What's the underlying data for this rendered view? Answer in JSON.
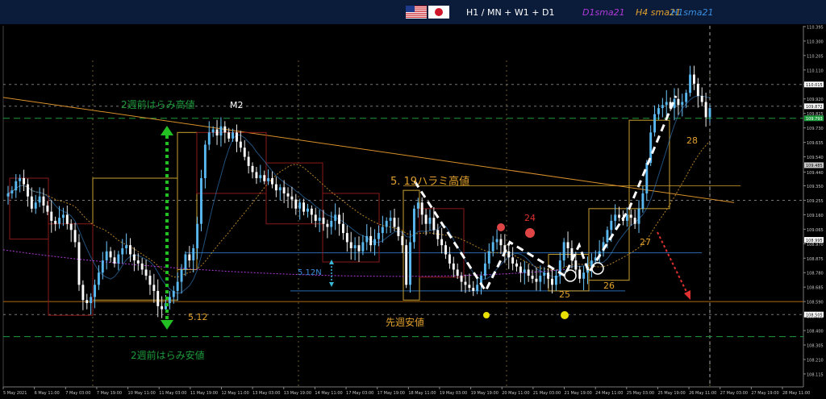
{
  "header": {
    "timeframes": "H1 / MN + W1 + D1",
    "legend": [
      {
        "label": "D1sma21",
        "color": "#b03ad8"
      },
      {
        "label": "H4 sma21",
        "color": "#e2a12c"
      },
      {
        "label": "H1sma21",
        "color": "#3a8fe0"
      }
    ],
    "flags": [
      "us-flag-icon",
      "japan-flag-icon"
    ]
  },
  "chart_data": {
    "type": "candlestick",
    "symbol_pair": "USDJPY",
    "ylim": [
      108.03,
      110.4
    ],
    "y_ticks": [
      110.395,
      110.3,
      110.205,
      110.11,
      110.015,
      109.92,
      109.825,
      109.73,
      109.635,
      109.54,
      109.44,
      109.35,
      109.255,
      109.16,
      109.065,
      108.97,
      108.875,
      108.78,
      108.685,
      108.59,
      108.495,
      108.4,
      108.305,
      108.21,
      108.115
    ],
    "x_ticks": [
      "5 May 2021",
      "6 May 11:00",
      "7 May 03:00",
      "7 May 19:00",
      "10 May 11:00",
      "11 May 03:00",
      "11 May 19:00",
      "12 May 11:00",
      "13 May 03:00",
      "13 May 19:00",
      "14 May 11:00",
      "17 May 03:00",
      "17 May 19:00",
      "18 May 11:00",
      "19 May 03:00",
      "19 May 19:00",
      "20 May 11:00",
      "21 May 03:00",
      "21 May 19:00",
      "24 May 11:00",
      "25 May 03:00",
      "25 May 19:00",
      "26 May 11:00",
      "27 May 03:00",
      "27 May 19:00",
      "28 May 11:00"
    ],
    "price_tags": [
      {
        "value": 110.015,
        "bg": "#ffffff",
        "fg": "#000000"
      },
      {
        "value": 109.872,
        "bg": "#ffffff",
        "fg": "#000000"
      },
      {
        "value": 109.793,
        "bg": "#1e9b3c",
        "fg": "#ffffff"
      },
      {
        "value": 109.485,
        "bg": "#c8c8c8",
        "fg": "#000000"
      },
      {
        "value": 108.995,
        "bg": "#ffffff",
        "fg": "#000000"
      },
      {
        "value": 108.505,
        "bg": "#ffffff",
        "fg": "#000000"
      }
    ],
    "levels": [
      {
        "name": "2w-harami-high",
        "value": 109.793,
        "color": "#1e9b3c",
        "style": "dashed"
      },
      {
        "name": "2w-harami-low",
        "value": 108.36,
        "color": "#1e9b3c",
        "style": "dashed"
      },
      {
        "name": "last-week-low",
        "value": 108.59,
        "color": "#b06a10",
        "style": "solid"
      },
      {
        "name": "519-harami-high",
        "value": 109.35,
        "color": "#a07a20",
        "style": "solid"
      },
      {
        "name": "blue-level-a",
        "value": 108.91,
        "color": "#2a6ab0",
        "style": "solid"
      },
      {
        "name": "blue-level-b",
        "value": 108.66,
        "color": "#2a6ab0",
        "style": "solid"
      },
      {
        "name": "white-dashed-a",
        "value": 110.015,
        "color": "#777777",
        "style": "dotted"
      },
      {
        "name": "white-dashed-b",
        "value": 109.872,
        "color": "#777777",
        "style": "dotted"
      },
      {
        "name": "white-dashed-c",
        "value": 109.255,
        "color": "#777777",
        "style": "dotted"
      },
      {
        "name": "white-dashed-d",
        "value": 108.505,
        "color": "#777777",
        "style": "dotted"
      }
    ],
    "close_path": [
      109.3,
      109.32,
      109.38,
      109.4,
      109.36,
      109.28,
      109.2,
      109.24,
      109.28,
      109.22,
      109.18,
      109.12,
      109.1,
      109.14,
      109.16,
      109.1,
      109.06,
      108.98,
      108.7,
      108.6,
      108.58,
      108.62,
      108.7,
      108.78,
      108.86,
      108.92,
      108.88,
      108.84,
      108.9,
      108.94,
      108.96,
      108.9,
      108.86,
      108.84,
      108.8,
      108.76,
      108.7,
      108.66,
      108.56,
      108.54,
      108.58,
      108.62,
      108.66,
      108.72,
      108.8,
      108.9,
      108.86,
      108.94,
      109.1,
      109.4,
      109.62,
      109.7,
      109.72,
      109.68,
      109.74,
      109.7,
      109.66,
      109.7,
      109.64,
      109.6,
      109.54,
      109.48,
      109.44,
      109.4,
      109.42,
      109.38,
      109.4,
      109.36,
      109.32,
      109.34,
      109.3,
      109.28,
      109.26,
      109.2,
      109.24,
      109.18,
      109.2,
      109.16,
      109.12,
      109.14,
      109.1,
      109.08,
      109.12,
      109.16,
      109.1,
      109.04,
      108.98,
      108.94,
      108.96,
      108.92,
      108.98,
      109.02,
      108.96,
      109.0,
      109.04,
      109.08,
      109.12,
      109.14,
      109.08,
      109.02,
      108.96,
      108.7,
      108.98,
      109.2,
      109.24,
      109.16,
      109.1,
      109.14,
      109.06,
      109.0,
      108.96,
      108.9,
      108.84,
      108.8,
      108.76,
      108.72,
      108.7,
      108.68,
      108.66,
      108.7,
      108.76,
      108.84,
      108.92,
      108.98,
      109.0,
      108.96,
      108.92,
      108.88,
      108.84,
      108.82,
      108.78,
      108.8,
      108.76,
      108.74,
      108.72,
      108.76,
      108.78,
      108.74,
      108.7,
      108.76,
      108.86,
      108.98,
      108.94,
      108.86,
      108.8,
      108.74,
      108.78,
      108.82,
      108.86,
      108.88,
      108.92,
      108.98,
      109.06,
      109.12,
      109.16,
      109.14,
      109.12,
      109.16,
      109.14,
      109.1,
      109.2,
      109.3,
      109.5,
      109.7,
      109.82,
      109.86,
      109.88,
      109.9,
      109.86,
      109.92,
      109.88,
      109.9,
      109.96,
      110.08,
      110.02,
      109.94,
      109.9,
      109.8,
      109.86
    ],
    "annotations": [
      {
        "text": "2週前はらみ高値",
        "color": "#1e9b3c"
      },
      {
        "text": "M2",
        "color": "#ffffff"
      },
      {
        "text": "5. 19ハラミ高値",
        "color": "#e2a12c"
      },
      {
        "text": "24",
        "color": "#e03030"
      },
      {
        "text": "28",
        "color": "#e2a12c"
      },
      {
        "text": "27",
        "color": "#e2a12c"
      },
      {
        "text": "26",
        "color": "#e2a12c"
      },
      {
        "text": "25",
        "color": "#e2a12c"
      },
      {
        "text": "5.12N",
        "color": "#3a8fe0"
      },
      {
        "text": "5.12",
        "color": "#e2a12c"
      },
      {
        "text": "先週安値",
        "color": "#e2a12c"
      },
      {
        "text": "2週前はらみ安値",
        "color": "#1e9b3c"
      }
    ],
    "grid": false
  }
}
